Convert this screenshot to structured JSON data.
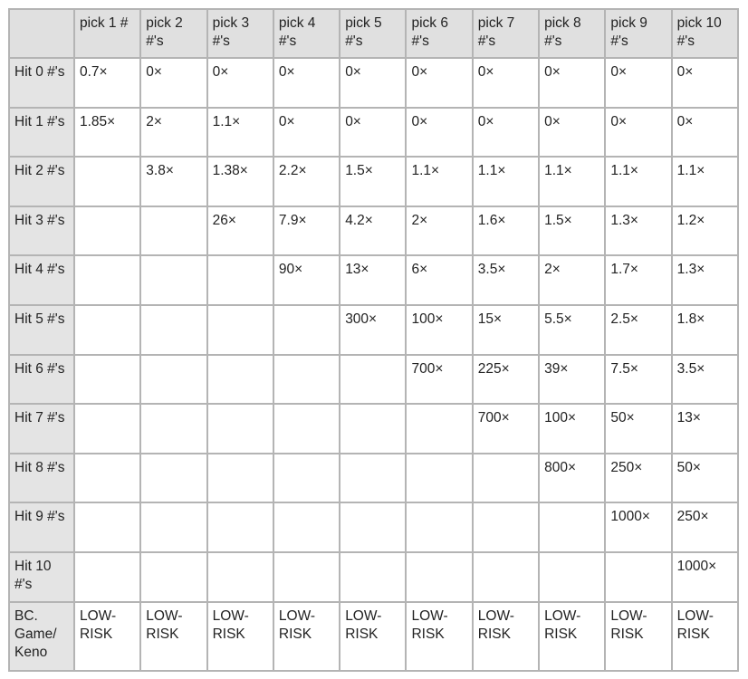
{
  "table": {
    "columns": [
      "",
      "pick 1 #",
      "pick 2 #'s",
      "pick 3 #'s",
      "pick 4 #'s",
      "pick 5 #'s",
      "pick 6 #'s",
      "pick 7 #'s",
      "pick 8 #'s",
      "pick 9 #'s",
      "pick 10 #'s"
    ],
    "rows": [
      {
        "label": "Hit 0 #'s",
        "cells": [
          "0.7×",
          "0×",
          "0×",
          "0×",
          "0×",
          "0×",
          "0×",
          "0×",
          "0×",
          "0×"
        ]
      },
      {
        "label": "Hit 1 #'s",
        "cells": [
          "1.85×",
          "2×",
          "1.1×",
          "0×",
          "0×",
          "0×",
          "0×",
          "0×",
          "0×",
          "0×"
        ]
      },
      {
        "label": "Hit 2 #'s",
        "cells": [
          "",
          "3.8×",
          "1.38×",
          "2.2×",
          "1.5×",
          "1.1×",
          "1.1×",
          "1.1×",
          "1.1×",
          "1.1×"
        ]
      },
      {
        "label": "Hit 3 #'s",
        "cells": [
          "",
          "",
          "26×",
          "7.9×",
          "4.2×",
          "2×",
          "1.6×",
          "1.5×",
          "1.3×",
          "1.2×"
        ]
      },
      {
        "label": "Hit 4 #'s",
        "cells": [
          "",
          "",
          "",
          "90×",
          "13×",
          "6×",
          "3.5×",
          "2×",
          "1.7×",
          "1.3×"
        ]
      },
      {
        "label": "Hit 5 #'s",
        "cells": [
          "",
          "",
          "",
          "",
          "300×",
          "100×",
          "15×",
          "5.5×",
          "2.5×",
          "1.8×"
        ]
      },
      {
        "label": "Hit 6 #'s",
        "cells": [
          "",
          "",
          "",
          "",
          "",
          "700×",
          "225×",
          "39×",
          "7.5×",
          "3.5×"
        ]
      },
      {
        "label": "Hit 7 #'s",
        "cells": [
          "",
          "",
          "",
          "",
          "",
          "",
          "700×",
          "100×",
          "50×",
          "13×"
        ]
      },
      {
        "label": "Hit 8 #'s",
        "cells": [
          "",
          "",
          "",
          "",
          "",
          "",
          "",
          "800×",
          "250×",
          "50×"
        ]
      },
      {
        "label": "Hit 9 #'s",
        "cells": [
          "",
          "",
          "",
          "",
          "",
          "",
          "",
          "",
          "1000×",
          "250×"
        ]
      },
      {
        "label": "Hit 10 #'s",
        "cells": [
          "",
          "",
          "",
          "",
          "",
          "",
          "",
          "",
          "",
          "1000×"
        ]
      },
      {
        "label": "BC. Game/ Keno",
        "cells": [
          "LOW-RISK",
          "LOW-RISK",
          "LOW-RISK",
          "LOW-RISK",
          "LOW-RISK",
          "LOW-RISK",
          "LOW-RISK",
          "LOW-RISK",
          "LOW-RISK",
          "LOW-RISK"
        ]
      }
    ]
  }
}
